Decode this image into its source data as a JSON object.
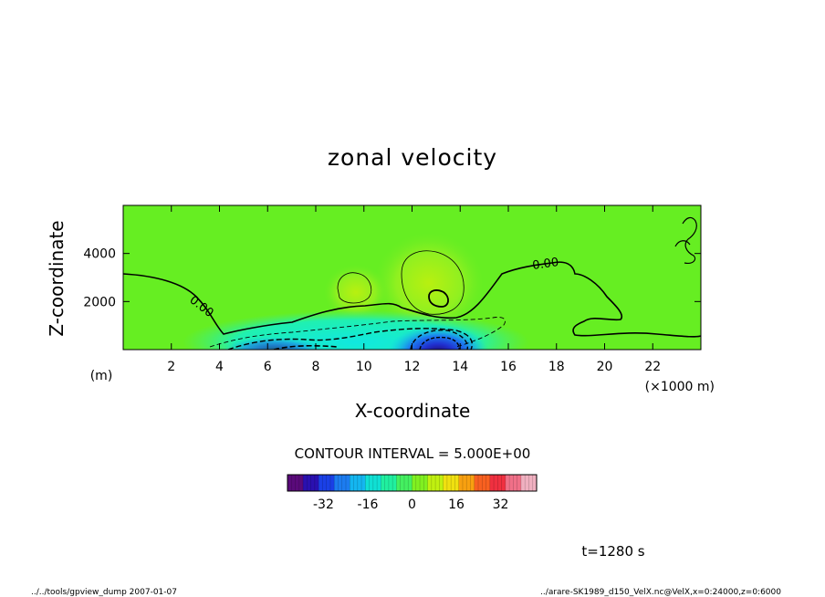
{
  "footer": {
    "left": "../../tools/gpview_dump  2007-01-07",
    "right": "../arare-SK1989_d150_VelX.nc@VelX,x=0:24000,z=0:6000"
  },
  "time_label": "t=1280 s",
  "colors": {
    "background_field": "#66ee22",
    "contour_line": "#000000"
  },
  "chart_data": {
    "type": "heatmap",
    "title": "zonal velocity",
    "xlabel": "X-coordinate",
    "ylabel": "Z-coordinate",
    "x_unit": "(×1000 m)",
    "y_unit": "(m)",
    "xlim": [
      0,
      24
    ],
    "ylim": [
      0,
      6000
    ],
    "x_ticks": [
      2,
      4,
      6,
      8,
      10,
      12,
      14,
      16,
      18,
      20,
      22
    ],
    "y_ticks": [
      2000,
      4000
    ],
    "contour_interval_label": "CONTOUR INTERVAL = 5.000E+00",
    "zero_contour_labels": [
      "0.00",
      "0.00"
    ],
    "colorbar": {
      "range": [
        -45,
        45
      ],
      "ticks": [
        -32,
        -16,
        0,
        16,
        32
      ],
      "colors": [
        "#5a0a7a",
        "#2a10b0",
        "#1a40e6",
        "#1c7cf0",
        "#14b6f0",
        "#10e0d4",
        "#20f0a0",
        "#44f060",
        "#80f020",
        "#c0f010",
        "#f0e010",
        "#f8a010",
        "#f86020",
        "#f03040",
        "#f07088",
        "#f0b0c0"
      ]
    }
  }
}
